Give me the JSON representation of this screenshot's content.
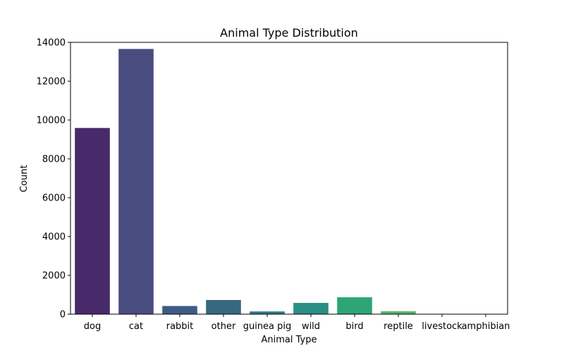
{
  "chart_data": {
    "type": "bar",
    "title": "Animal Type Distribution",
    "xlabel": "Animal Type",
    "ylabel": "Count",
    "categories": [
      "dog",
      "cat",
      "rabbit",
      "other",
      "guinea pig",
      "wild",
      "bird",
      "reptile",
      "livestock",
      "amphibian"
    ],
    "values": [
      9590,
      13660,
      420,
      730,
      140,
      580,
      870,
      150,
      8,
      4
    ],
    "colors": [
      "#482a6a",
      "#484c7f",
      "#3d5b85",
      "#36687f",
      "#2f7b84",
      "#298e83",
      "#2da577",
      "#52b66d",
      "#79c566",
      "#a3d35a"
    ],
    "ylim": [
      0,
      14000
    ],
    "yticks": [
      0,
      2000,
      4000,
      6000,
      8000,
      10000,
      12000,
      14000
    ],
    "ytick_labels": [
      "0",
      "2000",
      "4000",
      "6000",
      "8000",
      "10000",
      "12000",
      "14000"
    ],
    "grid": false
  }
}
